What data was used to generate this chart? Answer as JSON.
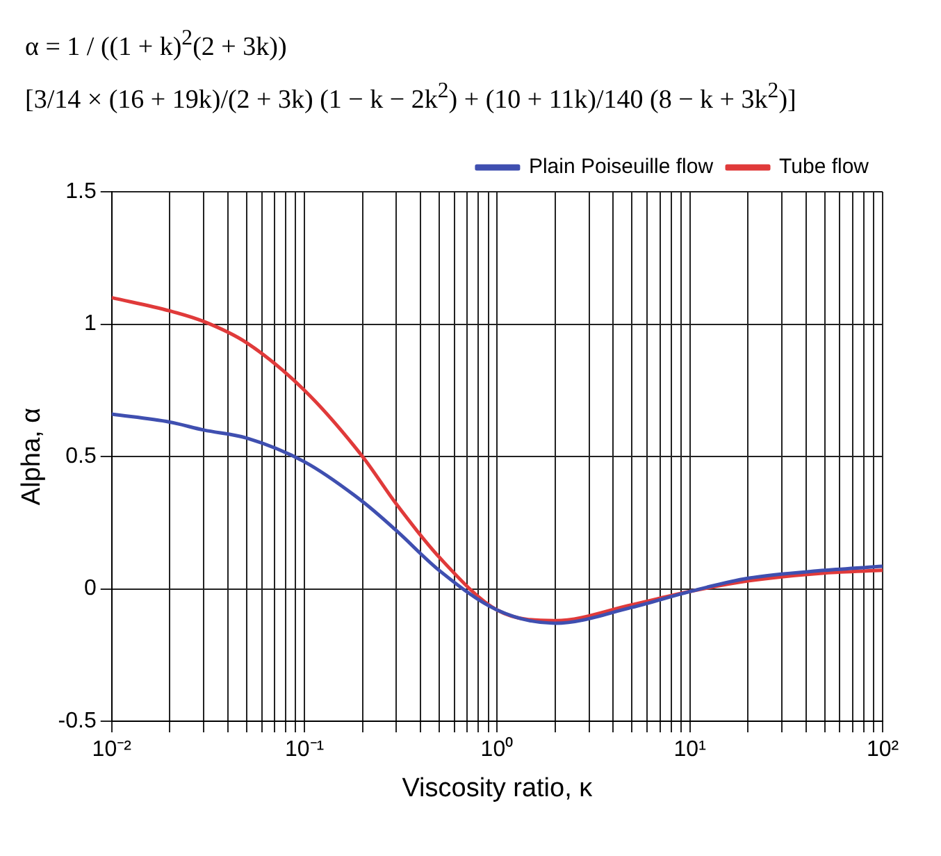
{
  "chart_data": {
    "type": "line",
    "annotations": [
      "α = 1 / ((1 + k)$^{2}$(2 + 3k))",
      "[3/14 × (16 + 19k)/(2 + 3k) (1 − k − 2k$^{2}$) + (10 + 11k)/140 (8 − k + 3k$^{2}$)]"
    ],
    "xlabel": "Viscosity ratio, κ",
    "ylabel": "Alpha, α",
    "x": [
      0.01,
      0.02,
      0.03,
      0.05,
      0.1,
      0.2,
      0.3,
      0.5,
      1,
      2,
      5,
      10,
      20,
      50,
      100
    ],
    "series": [
      {
        "name": "Plain Poiseuille flow",
        "color": "#3f4fb0",
        "values": [
          0.66,
          0.63,
          0.6,
          0.57,
          0.48,
          0.33,
          0.22,
          0.07,
          -0.08,
          -0.13,
          -0.07,
          -0.01,
          0.04,
          0.07,
          0.085
        ]
      },
      {
        "name": "Tube flow",
        "color": "#e03a3a",
        "values": [
          1.1,
          1.05,
          1.01,
          0.93,
          0.75,
          0.5,
          0.32,
          0.12,
          -0.08,
          -0.12,
          -0.06,
          -0.01,
          0.03,
          0.06,
          0.07
        ]
      }
    ],
    "log": "x",
    "xlim": [
      0.01,
      100
    ],
    "xticks": [
      {
        "value": 0.01,
        "label": "10⁻²"
      },
      {
        "value": 0.02,
        "label": null
      },
      {
        "value": 0.03,
        "label": null
      },
      {
        "value": 0.04,
        "label": null
      },
      {
        "value": 0.05,
        "label": null
      },
      {
        "value": 0.06,
        "label": null
      },
      {
        "value": 0.07,
        "label": null
      },
      {
        "value": 0.08,
        "label": null
      },
      {
        "value": 0.09,
        "label": null
      },
      {
        "value": 0.1,
        "label": "10⁻¹"
      },
      {
        "value": 0.2,
        "label": null
      },
      {
        "value": 0.3,
        "label": null
      },
      {
        "value": 0.4,
        "label": null
      },
      {
        "value": 0.5,
        "label": null
      },
      {
        "value": 0.6,
        "label": null
      },
      {
        "value": 0.7,
        "label": null
      },
      {
        "value": 0.8,
        "label": null
      },
      {
        "value": 0.9,
        "label": null
      },
      {
        "value": 1,
        "label": "10⁰"
      },
      {
        "value": 2,
        "label": null
      },
      {
        "value": 3,
        "label": null
      },
      {
        "value": 4,
        "label": null
      },
      {
        "value": 5,
        "label": null
      },
      {
        "value": 6,
        "label": null
      },
      {
        "value": 7,
        "label": null
      },
      {
        "value": 8,
        "label": null
      },
      {
        "value": 9,
        "label": null
      },
      {
        "value": 10,
        "label": "10¹"
      },
      {
        "value": 20,
        "label": null
      },
      {
        "value": 30,
        "label": null
      },
      {
        "value": 40,
        "label": null
      },
      {
        "value": 50,
        "label": null
      },
      {
        "value": 60,
        "label": null
      },
      {
        "value": 70,
        "label": null
      },
      {
        "value": 80,
        "label": null
      },
      {
        "value": 90,
        "label": null
      },
      {
        "value": 100,
        "label": "10²"
      }
    ],
    "ylim": [
      -0.5,
      1.5
    ],
    "yticks": [
      -0.5,
      0,
      0.5,
      1,
      1.5
    ],
    "grid": true,
    "legend": "top right",
    "marker": "none",
    "line_style": "solid"
  }
}
